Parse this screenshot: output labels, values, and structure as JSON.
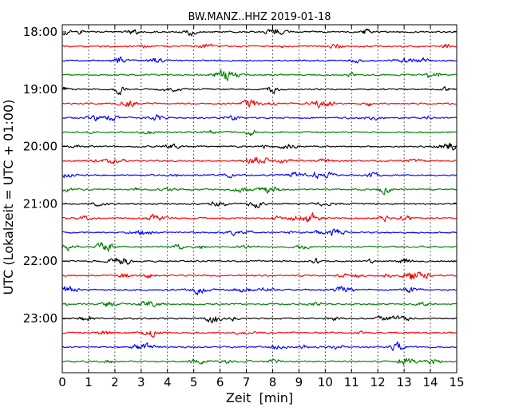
{
  "chart_data": {
    "type": "line",
    "title": "BW.MANZ..HHZ 2019-01-18",
    "xlabel": "Zeit  [min]",
    "ylabel": "UTC (Lokalzeit = UTC + 01:00)",
    "xlim": [
      0,
      15
    ],
    "x_ticks": [
      "0",
      "1",
      "2",
      "3",
      "4",
      "5",
      "6",
      "7",
      "8",
      "9",
      "10",
      "11",
      "12",
      "13",
      "14",
      "15"
    ],
    "y_ticks": [
      "18:00",
      "19:00",
      "20:00",
      "21:00",
      "22:00",
      "23:00"
    ],
    "traces_per_hour": 4,
    "trace_count": 24,
    "trace_colors": [
      "#000000",
      "#ff0000",
      "#0000ff",
      "#008000"
    ],
    "vertical_grid": "dotted",
    "legend": "none"
  }
}
